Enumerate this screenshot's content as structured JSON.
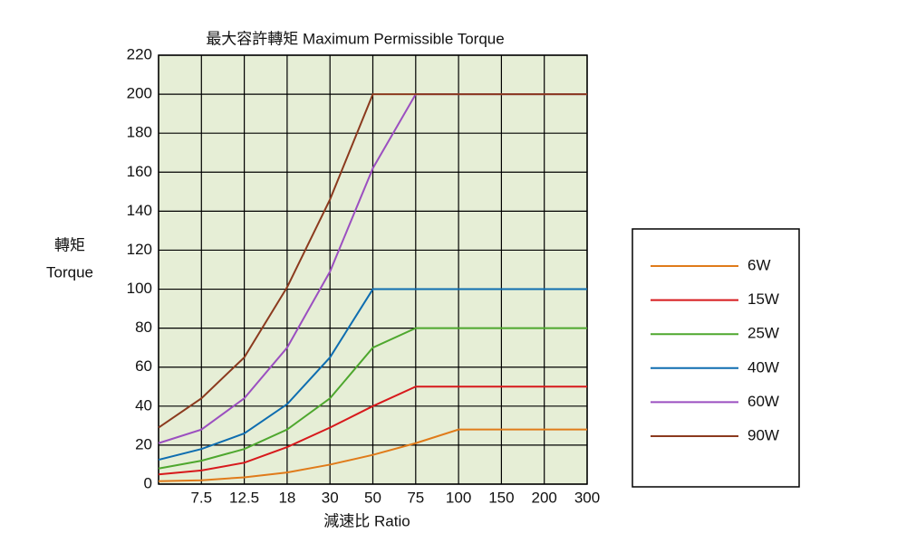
{
  "chart_data": {
    "type": "line",
    "title": "最大容許轉矩  Maximum Permissible Torque",
    "x_label": "減速比 Ratio",
    "y_label": [
      "轉矩",
      "Torque"
    ],
    "categories": [
      null,
      "7.5",
      "12.5",
      "18",
      "30",
      "50",
      "75",
      "100",
      "150",
      "200",
      "300"
    ],
    "series": [
      {
        "name": "6W",
        "color": "#e07b1a",
        "values": [
          1.5,
          2,
          3.5,
          6,
          10,
          15,
          21,
          28,
          28,
          28,
          28
        ]
      },
      {
        "name": "15W",
        "color": "#d7191c",
        "values": [
          5,
          7,
          11,
          19,
          29,
          40,
          50,
          50,
          50,
          50,
          50
        ]
      },
      {
        "name": "25W",
        "color": "#4ea72e",
        "values": [
          8,
          12,
          18,
          28,
          44,
          70,
          80,
          80,
          80,
          80,
          80
        ]
      },
      {
        "name": "40W",
        "color": "#0e6db0",
        "values": [
          12.5,
          18,
          26,
          41,
          65,
          100,
          100,
          100,
          100,
          100,
          100
        ]
      },
      {
        "name": "60W",
        "color": "#9b4fc0",
        "values": [
          21,
          28,
          44,
          70,
          109,
          162,
          200,
          200,
          200,
          200,
          200
        ]
      },
      {
        "name": "90W",
        "color": "#8b3a1e",
        "values": [
          29,
          44,
          65,
          101,
          146,
          200,
          200,
          200,
          200,
          200,
          200
        ]
      }
    ],
    "ylim": [
      0,
      220
    ],
    "yticks": [
      0,
      20,
      40,
      60,
      80,
      100,
      120,
      140,
      160,
      180,
      200,
      220
    ],
    "grid": true,
    "plot_background": "#e6eed6",
    "legend": "right"
  }
}
